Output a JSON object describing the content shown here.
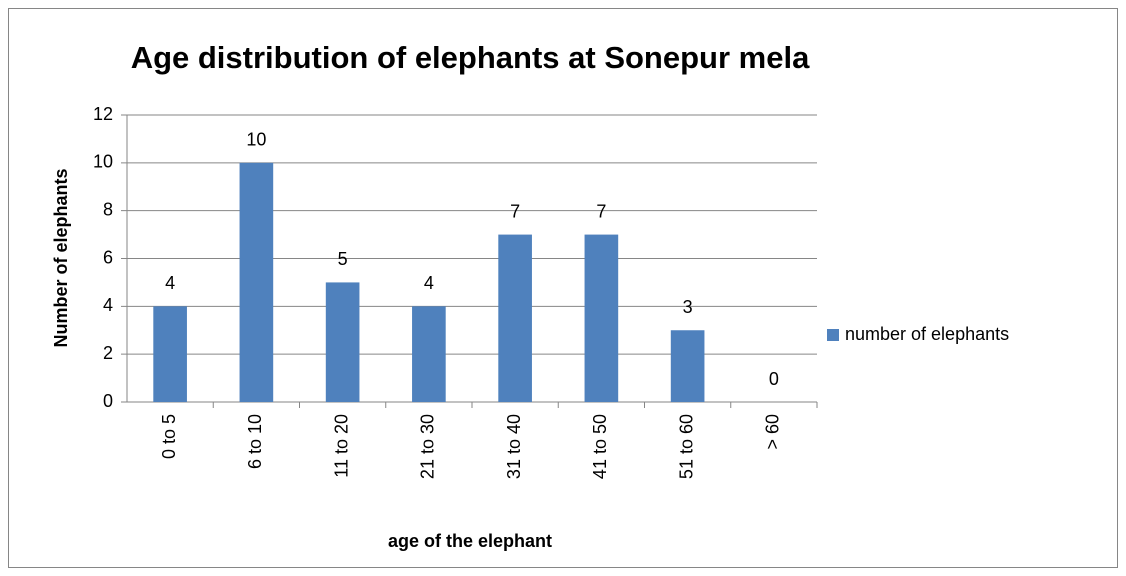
{
  "chart_data": {
    "type": "bar",
    "title": "Age distribution of elephants at Sonepur mela",
    "x_label": "age of the elephant",
    "y_label": "Number of elephants",
    "categories": [
      "0 to 5",
      "6 to 10",
      "11 to 20",
      "21 to 30",
      "31 to 40",
      "41 to 50",
      "51 to 60",
      "> 60"
    ],
    "series": [
      {
        "name": "number of elephants",
        "color": "#4f81bd",
        "values": [
          4,
          10,
          5,
          4,
          7,
          7,
          3,
          0
        ]
      }
    ],
    "ylim": [
      0,
      12
    ],
    "yticks": [
      0,
      2,
      4,
      6,
      8,
      10,
      12
    ],
    "grid": true,
    "legend": "right"
  }
}
